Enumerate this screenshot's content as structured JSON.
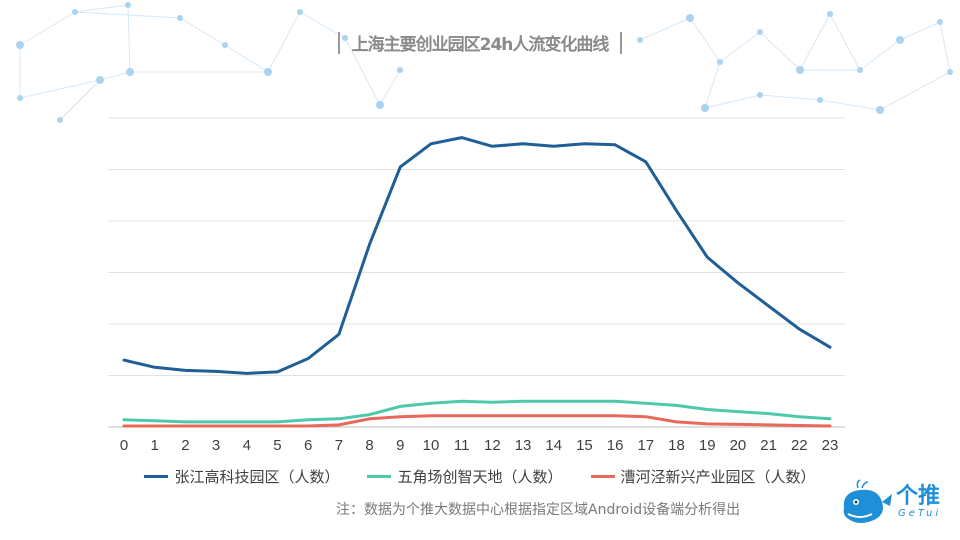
{
  "title": "上海主要创业园区24h人流变化曲线",
  "note": "注：数据为个推大数据中心根据指定区域Android设备端分析得出",
  "logo": {
    "text": "个推",
    "sub": "GeTui"
  },
  "colors": {
    "title": "#8a8a8a",
    "grid": "#e3e3e3",
    "axis": "#bfbfbf"
  },
  "chart_data": {
    "type": "line",
    "title": "上海主要创业园区24h人流变化曲线",
    "xlabel": "",
    "ylabel": "",
    "x": [
      "0",
      "1",
      "2",
      "3",
      "4",
      "5",
      "6",
      "7",
      "8",
      "9",
      "10",
      "11",
      "12",
      "13",
      "14",
      "15",
      "16",
      "17",
      "18",
      "19",
      "20",
      "21",
      "22",
      "23"
    ],
    "ylim": [
      0,
      6
    ],
    "grid": true,
    "legend_position": "bottom",
    "series": [
      {
        "name": "张江高科技园区（人数）",
        "color": "#1f5e96",
        "values": [
          1.3,
          1.16,
          1.1,
          1.08,
          1.04,
          1.07,
          1.33,
          1.8,
          3.55,
          5.05,
          5.5,
          5.62,
          5.45,
          5.5,
          5.45,
          5.5,
          5.48,
          5.15,
          4.2,
          3.3,
          2.8,
          2.35,
          1.9,
          1.55
        ]
      },
      {
        "name": "五角场创智天地（人数）",
        "color": "#4cc9a9",
        "values": [
          0.14,
          0.12,
          0.1,
          0.1,
          0.1,
          0.1,
          0.14,
          0.16,
          0.24,
          0.4,
          0.46,
          0.5,
          0.48,
          0.5,
          0.5,
          0.5,
          0.5,
          0.46,
          0.42,
          0.34,
          0.3,
          0.26,
          0.2,
          0.16
        ]
      },
      {
        "name": "漕河泾新兴产业园区（人数）",
        "color": "#e8685a",
        "values": [
          0.02,
          0.02,
          0.02,
          0.02,
          0.02,
          0.02,
          0.02,
          0.04,
          0.16,
          0.2,
          0.22,
          0.22,
          0.22,
          0.22,
          0.22,
          0.22,
          0.22,
          0.2,
          0.1,
          0.06,
          0.05,
          0.04,
          0.03,
          0.02
        ]
      }
    ]
  }
}
